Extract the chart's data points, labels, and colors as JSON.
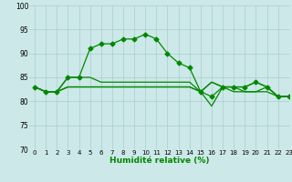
{
  "xlabel": "Humidité relative (%)",
  "xlim": [
    -0.5,
    23
  ],
  "ylim": [
    70,
    100
  ],
  "yticks": [
    70,
    75,
    80,
    85,
    90,
    95,
    100
  ],
  "xticks": [
    0,
    1,
    2,
    3,
    4,
    5,
    6,
    7,
    8,
    9,
    10,
    11,
    12,
    13,
    14,
    15,
    16,
    17,
    18,
    19,
    20,
    21,
    22,
    23
  ],
  "bg_color": "#cce8e8",
  "grid_color": "#aacece",
  "line_color": "#008800",
  "series": [
    [
      83,
      82,
      82,
      85,
      85,
      91,
      92,
      92,
      93,
      93,
      94,
      93,
      90,
      88,
      87,
      82,
      81,
      83,
      83,
      83,
      84,
      83,
      81,
      81
    ],
    [
      83,
      82,
      82,
      85,
      85,
      85,
      84,
      84,
      84,
      84,
      84,
      84,
      84,
      84,
      84,
      82,
      84,
      83,
      83,
      83,
      84,
      83,
      81,
      81
    ],
    [
      83,
      82,
      82,
      83,
      83,
      83,
      83,
      83,
      83,
      83,
      83,
      83,
      83,
      83,
      83,
      82,
      84,
      83,
      83,
      82,
      82,
      82,
      81,
      81
    ],
    [
      83,
      82,
      82,
      83,
      83,
      83,
      83,
      83,
      83,
      83,
      83,
      83,
      83,
      83,
      83,
      82,
      79,
      83,
      82,
      82,
      82,
      83,
      81,
      81
    ]
  ],
  "marker": "D",
  "markersize": 2.5,
  "linewidth": 0.9
}
